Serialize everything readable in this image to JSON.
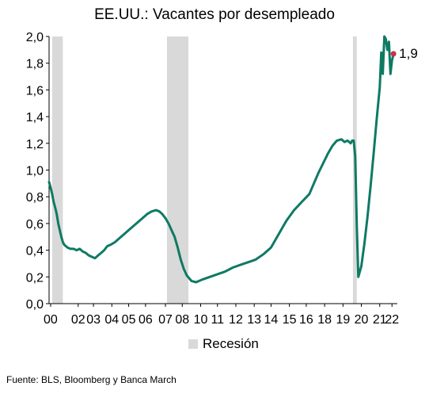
{
  "chart_data": {
    "type": "line",
    "title": "EE.UU.: Vacantes por desempleado",
    "xlabel": "",
    "ylabel": "",
    "xlim": [
      2000,
      2022.75
    ],
    "ylim": [
      0,
      2
    ],
    "y_ticks": [
      "0,0",
      "0,2",
      "0,4",
      "0,6",
      "0,8",
      "1,0",
      "1,2",
      "1,4",
      "1,6",
      "1,8",
      "2,0"
    ],
    "x_ticks": [
      {
        "x": 2000.1,
        "label": "00"
      },
      {
        "x": 2001.9,
        "label": "02"
      },
      {
        "x": 2002.9,
        "label": "03"
      },
      {
        "x": 2004.1,
        "label": "04"
      },
      {
        "x": 2005.2,
        "label": "05"
      },
      {
        "x": 2006.3,
        "label": "06"
      },
      {
        "x": 2007.6,
        "label": "07"
      },
      {
        "x": 2008.7,
        "label": "08"
      },
      {
        "x": 2009.9,
        "label": "10"
      },
      {
        "x": 2011.0,
        "label": "11"
      },
      {
        "x": 2012.2,
        "label": "12"
      },
      {
        "x": 2013.4,
        "label": "13"
      },
      {
        "x": 2014.5,
        "label": "14"
      },
      {
        "x": 2015.7,
        "label": "15"
      },
      {
        "x": 2016.8,
        "label": "16"
      },
      {
        "x": 2018.0,
        "label": "18"
      },
      {
        "x": 2019.2,
        "label": "19"
      },
      {
        "x": 2020.4,
        "label": "20"
      },
      {
        "x": 2021.6,
        "label": "21"
      },
      {
        "x": 2022.4,
        "label": "22"
      }
    ],
    "recessions": [
      [
        2000.2,
        2000.9
      ],
      [
        2007.7,
        2009.1
      ],
      [
        2019.85,
        2020.1
      ]
    ],
    "series": [
      {
        "name": "",
        "color": "#0e7a64",
        "x": [
          2000.0,
          2000.1,
          2000.2,
          2000.3,
          2000.4,
          2000.5,
          2000.6,
          2000.7,
          2000.8,
          2000.9,
          2001.0,
          2001.2,
          2001.4,
          2001.6,
          2001.8,
          2002.0,
          2002.2,
          2002.4,
          2002.6,
          2002.8,
          2003.0,
          2003.2,
          2003.4,
          2003.6,
          2003.8,
          2004.0,
          2004.3,
          2004.6,
          2004.9,
          2005.2,
          2005.5,
          2005.8,
          2006.1,
          2006.4,
          2006.7,
          2007.0,
          2007.2,
          2007.4,
          2007.6,
          2007.8,
          2008.0,
          2008.2,
          2008.4,
          2008.6,
          2008.8,
          2009.0,
          2009.3,
          2009.6,
          2010.0,
          2010.5,
          2011.0,
          2011.5,
          2012.0,
          2012.5,
          2013.0,
          2013.5,
          2014.0,
          2014.5,
          2015.0,
          2015.5,
          2016.0,
          2016.5,
          2017.0,
          2017.3,
          2017.6,
          2017.9,
          2018.2,
          2018.5,
          2018.8,
          2019.1,
          2019.3,
          2019.5,
          2019.7,
          2019.8,
          2019.9,
          2020.0,
          2020.1,
          2020.2,
          2020.4,
          2020.6,
          2020.8,
          2021.0,
          2021.2,
          2021.4,
          2021.6,
          2021.7,
          2021.8,
          2021.9,
          2022.0,
          2022.1,
          2022.2,
          2022.3,
          2022.4,
          2022.5
        ],
        "values": [
          0.91,
          0.87,
          0.82,
          0.76,
          0.72,
          0.67,
          0.6,
          0.55,
          0.5,
          0.46,
          0.44,
          0.42,
          0.41,
          0.41,
          0.4,
          0.41,
          0.39,
          0.38,
          0.36,
          0.35,
          0.34,
          0.36,
          0.38,
          0.4,
          0.43,
          0.44,
          0.46,
          0.49,
          0.52,
          0.55,
          0.58,
          0.61,
          0.64,
          0.67,
          0.69,
          0.7,
          0.69,
          0.67,
          0.64,
          0.6,
          0.55,
          0.5,
          0.42,
          0.33,
          0.26,
          0.21,
          0.17,
          0.16,
          0.18,
          0.2,
          0.22,
          0.24,
          0.27,
          0.29,
          0.31,
          0.33,
          0.37,
          0.42,
          0.52,
          0.62,
          0.7,
          0.76,
          0.82,
          0.9,
          0.98,
          1.05,
          1.12,
          1.18,
          1.22,
          1.23,
          1.21,
          1.22,
          1.2,
          1.22,
          1.22,
          1.1,
          0.6,
          0.2,
          0.28,
          0.45,
          0.65,
          0.88,
          1.12,
          1.38,
          1.62,
          1.88,
          1.72,
          2.0,
          1.98,
          1.9,
          1.96,
          1.72,
          1.82,
          1.87
        ]
      }
    ],
    "end_label": "1,9",
    "end_marker_color": "#c8334a",
    "recession_color": "#d9d9d9"
  },
  "legend": {
    "label": "Recesión"
  },
  "source": "Fuente: BLS, Bloomberg y Banca March"
}
